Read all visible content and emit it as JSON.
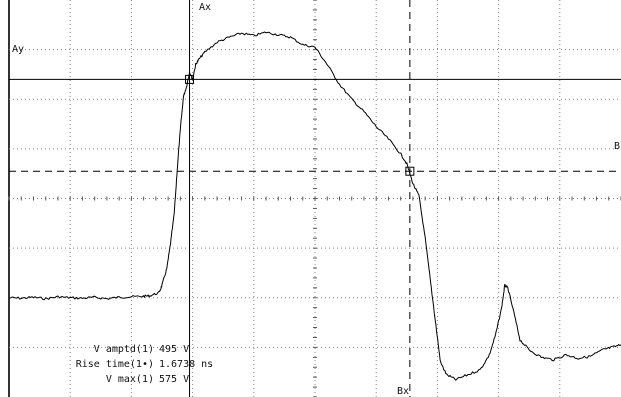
{
  "chart_data": {
    "type": "line",
    "x_units": "div",
    "y_units": "div",
    "x_range": [
      0,
      10
    ],
    "y_range": [
      -4,
      4
    ],
    "grid": true,
    "grid_divisions": {
      "x": 10,
      "y": 8
    },
    "series": [
      {
        "color": "#000000",
        "points": [
          [
            0.0,
            -2.0
          ],
          [
            0.2,
            -2.01
          ],
          [
            0.4,
            -1.99
          ],
          [
            0.6,
            -2.02
          ],
          [
            0.8,
            -1.98
          ],
          [
            1.0,
            -2.0
          ],
          [
            1.2,
            -2.01
          ],
          [
            1.4,
            -1.99
          ],
          [
            1.6,
            -2.02
          ],
          [
            1.8,
            -1.99
          ],
          [
            2.0,
            -1.98
          ],
          [
            2.2,
            -1.97
          ],
          [
            2.3,
            -1.96
          ],
          [
            2.45,
            -1.9
          ],
          [
            2.5,
            -1.75
          ],
          [
            2.58,
            -1.4
          ],
          [
            2.64,
            -0.9
          ],
          [
            2.7,
            -0.3
          ],
          [
            2.75,
            0.6
          ],
          [
            2.8,
            1.4
          ],
          [
            2.85,
            2.05
          ],
          [
            2.9,
            2.25
          ],
          [
            2.95,
            2.55
          ],
          [
            3.0,
            2.4
          ],
          [
            3.05,
            2.7
          ],
          [
            3.1,
            2.8
          ],
          [
            3.2,
            2.95
          ],
          [
            3.4,
            3.15
          ],
          [
            3.6,
            3.25
          ],
          [
            3.8,
            3.33
          ],
          [
            4.0,
            3.28
          ],
          [
            4.2,
            3.35
          ],
          [
            4.4,
            3.3
          ],
          [
            4.6,
            3.25
          ],
          [
            4.8,
            3.1
          ],
          [
            5.0,
            3.05
          ],
          [
            5.2,
            2.7
          ],
          [
            5.4,
            2.3
          ],
          [
            5.6,
            2.0
          ],
          [
            5.8,
            1.75
          ],
          [
            6.0,
            1.45
          ],
          [
            6.2,
            1.2
          ],
          [
            6.4,
            0.9
          ],
          [
            6.5,
            0.7
          ],
          [
            6.6,
            0.3
          ],
          [
            6.7,
            0.05
          ],
          [
            6.8,
            -0.8
          ],
          [
            6.9,
            -1.8
          ],
          [
            7.0,
            -2.8
          ],
          [
            7.05,
            -3.3
          ],
          [
            7.15,
            -3.55
          ],
          [
            7.3,
            -3.65
          ],
          [
            7.5,
            -3.55
          ],
          [
            7.7,
            -3.45
          ],
          [
            7.85,
            -3.15
          ],
          [
            7.95,
            -2.75
          ],
          [
            8.05,
            -2.2
          ],
          [
            8.1,
            -1.75
          ],
          [
            8.15,
            -1.8
          ],
          [
            8.25,
            -2.3
          ],
          [
            8.35,
            -2.85
          ],
          [
            8.5,
            -3.05
          ],
          [
            8.7,
            -3.2
          ],
          [
            8.9,
            -3.25
          ],
          [
            9.1,
            -3.15
          ],
          [
            9.3,
            -3.22
          ],
          [
            9.5,
            -3.18
          ],
          [
            9.7,
            -3.05
          ],
          [
            9.85,
            -3.0
          ],
          [
            10.0,
            -2.95
          ]
        ]
      }
    ],
    "cursors": {
      "ax": {
        "label": "Ax",
        "x": 2.95,
        "style": "solid"
      },
      "ay": {
        "label": "Ay",
        "y": 2.4,
        "style": "solid"
      },
      "bx": {
        "label": "Bx",
        "x": 6.55,
        "style": "dashed"
      },
      "by": {
        "label": "B",
        "y": 0.55,
        "style": "dashed"
      }
    }
  },
  "measurements": [
    {
      "label": "V amptd(1)",
      "value": "495 V"
    },
    {
      "label": "Rise time(1•)",
      "value": "1.6738 ns"
    },
    {
      "label": "V max(1)",
      "value": "575 V"
    }
  ]
}
